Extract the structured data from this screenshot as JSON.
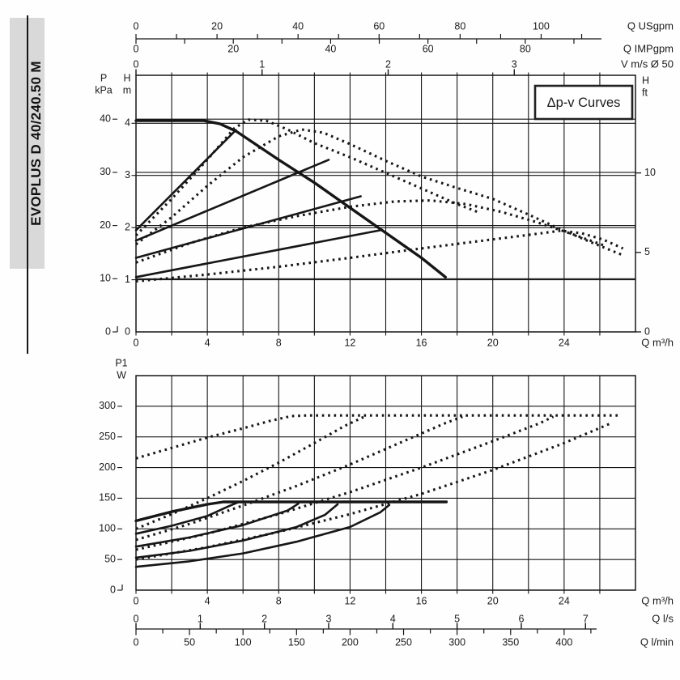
{
  "banner": {
    "model": "EVOPLUS D 40/240.50 M"
  },
  "chart_data": [
    {
      "type": "line",
      "title": "Δp-v Curves",
      "xlabel": "Q m³/h",
      "x_range": [
        0,
        28
      ],
      "x_grid_step": 2,
      "x_tick_labels": [
        0,
        4,
        8,
        12,
        16,
        20,
        24
      ],
      "y_axes": {
        "kpa": {
          "title": [
            "P",
            "kPa"
          ],
          "ticks": [
            0,
            10,
            20,
            30,
            40
          ],
          "m_per_unit": 0.10197
        },
        "m": {
          "title": [
            "H",
            "m"
          ],
          "ticks": [
            0,
            1,
            2,
            3,
            4
          ],
          "range": [
            0,
            4.92
          ]
        },
        "ft": {
          "title": [
            "H",
            "ft"
          ],
          "ticks": [
            0,
            5,
            10
          ],
          "m_per_unit": 0.3048
        }
      },
      "top_scales": [
        {
          "unit": "Q USgpm",
          "m3h_per_unit": 0.22712,
          "labels": [
            0,
            20,
            40,
            60,
            80,
            100
          ],
          "tick_step": 10,
          "tick_max": 110
        },
        {
          "unit": "Q IMPgpm",
          "m3h_per_unit": 0.27277,
          "labels": [
            0,
            20,
            40,
            60,
            80
          ],
          "tick_step": 10,
          "tick_max": 90
        },
        {
          "unit": "V m/s Ø 50",
          "m3h_per_unit": 7.0686,
          "labels": [
            0,
            1,
            2,
            3
          ],
          "tick_step": 1,
          "tick_max": 3
        }
      ],
      "series": [
        {
          "name": "max-speed-curve",
          "style": "solid",
          "points": [
            [
              0,
              4.05
            ],
            [
              3.8,
              4.05
            ],
            [
              4.7,
              3.99
            ],
            [
              5.6,
              3.85
            ],
            [
              8,
              3.3
            ],
            [
              10,
              2.86
            ],
            [
              12,
              2.38
            ],
            [
              14,
              1.9
            ],
            [
              16,
              1.42
            ],
            [
              17.35,
              1.05
            ]
          ]
        },
        {
          "name": "dpv-set-line-1",
          "style": "solid",
          "points": [
            [
              0,
              1.95
            ],
            [
              5.6,
              3.87
            ]
          ]
        },
        {
          "name": "dpv-set-line-2",
          "style": "solid",
          "points": [
            [
              0,
              1.75
            ],
            [
              10.8,
              3.3
            ]
          ]
        },
        {
          "name": "dpv-set-line-3",
          "style": "solid",
          "points": [
            [
              0,
              1.42
            ],
            [
              12.6,
              2.6
            ]
          ]
        },
        {
          "name": "dpv-set-line-4",
          "style": "solid",
          "points": [
            [
              0,
              1.05
            ],
            [
              13.7,
              1.95
            ]
          ]
        },
        {
          "name": "dpv-curve-1",
          "style": "dotted",
          "points": [
            [
              0,
              1.85
            ],
            [
              2,
              2.55
            ],
            [
              4,
              3.3
            ],
            [
              5.5,
              3.9
            ],
            [
              6.3,
              4.07
            ],
            [
              7.3,
              4.05
            ],
            [
              8.5,
              3.88
            ],
            [
              10,
              3.62
            ],
            [
              12,
              3.35
            ],
            [
              14,
              3.05
            ],
            [
              16,
              2.75
            ],
            [
              18,
              2.45
            ],
            [
              19.3,
              2.28
            ]
          ]
        },
        {
          "name": "dpv-curve-2",
          "style": "dotted",
          "points": [
            [
              0,
              1.68
            ],
            [
              2,
              2.2
            ],
            [
              4,
              2.8
            ],
            [
              6,
              3.35
            ],
            [
              8,
              3.75
            ],
            [
              9.3,
              3.88
            ],
            [
              10.5,
              3.82
            ],
            [
              12,
              3.6
            ],
            [
              14,
              3.28
            ],
            [
              16,
              2.98
            ],
            [
              18,
              2.76
            ],
            [
              20,
              2.55
            ],
            [
              22,
              2.25
            ],
            [
              23.6,
              2.0
            ],
            [
              25.5,
              1.72
            ],
            [
              27.3,
              1.47
            ]
          ]
        },
        {
          "name": "dpv-curve-3",
          "style": "dotted",
          "points": [
            [
              0,
              1.33
            ],
            [
              3,
              1.7
            ],
            [
              6,
              2.0
            ],
            [
              9,
              2.22
            ],
            [
              12,
              2.4
            ],
            [
              14.5,
              2.5
            ],
            [
              16.5,
              2.52
            ],
            [
              18.5,
              2.45
            ],
            [
              20.5,
              2.3
            ],
            [
              22.5,
              2.1
            ],
            [
              24.5,
              1.87
            ],
            [
              26.3,
              1.65
            ]
          ]
        },
        {
          "name": "dpv-curve-4",
          "style": "dotted",
          "points": [
            [
              0,
              0.97
            ],
            [
              4,
              1.1
            ],
            [
              8,
              1.25
            ],
            [
              12,
              1.42
            ],
            [
              16,
              1.6
            ],
            [
              19,
              1.73
            ],
            [
              22,
              1.86
            ],
            [
              23.8,
              1.94
            ],
            [
              25,
              1.89
            ],
            [
              26.2,
              1.77
            ],
            [
              27.3,
              1.6
            ]
          ]
        }
      ]
    },
    {
      "type": "line",
      "title": "",
      "xlabel": "Q m³/h",
      "x_range": [
        0,
        28
      ],
      "x_grid_step": 2,
      "x_tick_labels": [
        0,
        4,
        8,
        12,
        16,
        20,
        24
      ],
      "y_axes": {
        "w": {
          "title": [
            "P1",
            "W"
          ],
          "ticks": [
            0,
            50,
            100,
            150,
            200,
            250,
            300
          ],
          "range": [
            0,
            350
          ]
        }
      },
      "bottom_scales": [
        {
          "unit": "Q l/s",
          "m3h_per_unit": 3.6,
          "labels": [
            0,
            1,
            2,
            3,
            4,
            5,
            6,
            7
          ],
          "tick_step": 1,
          "tick_max": 7
        },
        {
          "unit": "Q l/min",
          "m3h_per_unit": 0.06,
          "labels": [
            0,
            50,
            100,
            150,
            200,
            250,
            300,
            350,
            400
          ],
          "tick_step": 25,
          "tick_max": 425,
          "label_step": 50
        }
      ],
      "series": [
        {
          "name": "p1-max-curve",
          "style": "solid",
          "points": [
            [
              0,
              113
            ],
            [
              2,
              128
            ],
            [
              4,
              140
            ],
            [
              4.9,
              144
            ],
            [
              17.4,
              144
            ]
          ]
        },
        {
          "name": "p1-set-1",
          "style": "solid",
          "points": [
            [
              0,
              92
            ],
            [
              2,
              105
            ],
            [
              4,
              121
            ],
            [
              5.2,
              137
            ],
            [
              5.7,
              143
            ]
          ]
        },
        {
          "name": "p1-set-2",
          "style": "solid",
          "points": [
            [
              0,
              71
            ],
            [
              3,
              86
            ],
            [
              6,
              106
            ],
            [
              8.5,
              130
            ],
            [
              9.1,
              141
            ]
          ]
        },
        {
          "name": "p1-set-3",
          "style": "solid",
          "points": [
            [
              0,
              53
            ],
            [
              3,
              64
            ],
            [
              6,
              81
            ],
            [
              9,
              103
            ],
            [
              10.6,
              123
            ],
            [
              11.3,
              140
            ]
          ]
        },
        {
          "name": "p1-set-4",
          "style": "solid",
          "points": [
            [
              0,
              38
            ],
            [
              3,
              47
            ],
            [
              6,
              60
            ],
            [
              9,
              79
            ],
            [
              12,
              103
            ],
            [
              13.7,
              127
            ],
            [
              14.2,
              139
            ]
          ]
        },
        {
          "name": "p1-dpv-1",
          "style": "dotted",
          "points": [
            [
              0,
              215
            ],
            [
              2,
              232
            ],
            [
              4,
              249
            ],
            [
              6,
              264
            ],
            [
              7.5,
              276
            ],
            [
              8.7,
              284
            ],
            [
              9.6,
              285
            ],
            [
              27.2,
              285
            ]
          ]
        },
        {
          "name": "p1-dpv-2",
          "style": "dotted",
          "points": [
            [
              0,
              100
            ],
            [
              2,
              124
            ],
            [
              4,
              150
            ],
            [
              6,
              178
            ],
            [
              8,
              208
            ],
            [
              10,
              240
            ],
            [
              11.7,
              268
            ],
            [
              12.8,
              283
            ]
          ]
        },
        {
          "name": "p1-dpv-3",
          "style": "dotted",
          "points": [
            [
              0,
              82
            ],
            [
              3,
              108
            ],
            [
              6,
              138
            ],
            [
              9,
              170
            ],
            [
              12,
              205
            ],
            [
              15,
              243
            ],
            [
              17.3,
              272
            ],
            [
              18.3,
              283
            ]
          ]
        },
        {
          "name": "p1-dpv-4",
          "style": "dotted",
          "points": [
            [
              0,
              66
            ],
            [
              4,
              92
            ],
            [
              8,
              124
            ],
            [
              12,
              160
            ],
            [
              16,
              200
            ],
            [
              20,
              243
            ],
            [
              22.6,
              272
            ],
            [
              23.4,
              283
            ]
          ]
        },
        {
          "name": "p1-dpv-5",
          "style": "dotted",
          "points": [
            [
              0,
              50
            ],
            [
              4,
              70
            ],
            [
              8,
              95
            ],
            [
              12,
              124
            ],
            [
              16,
              157
            ],
            [
              20,
              196
            ],
            [
              24,
              240
            ],
            [
              26.6,
              272
            ]
          ]
        }
      ]
    }
  ]
}
